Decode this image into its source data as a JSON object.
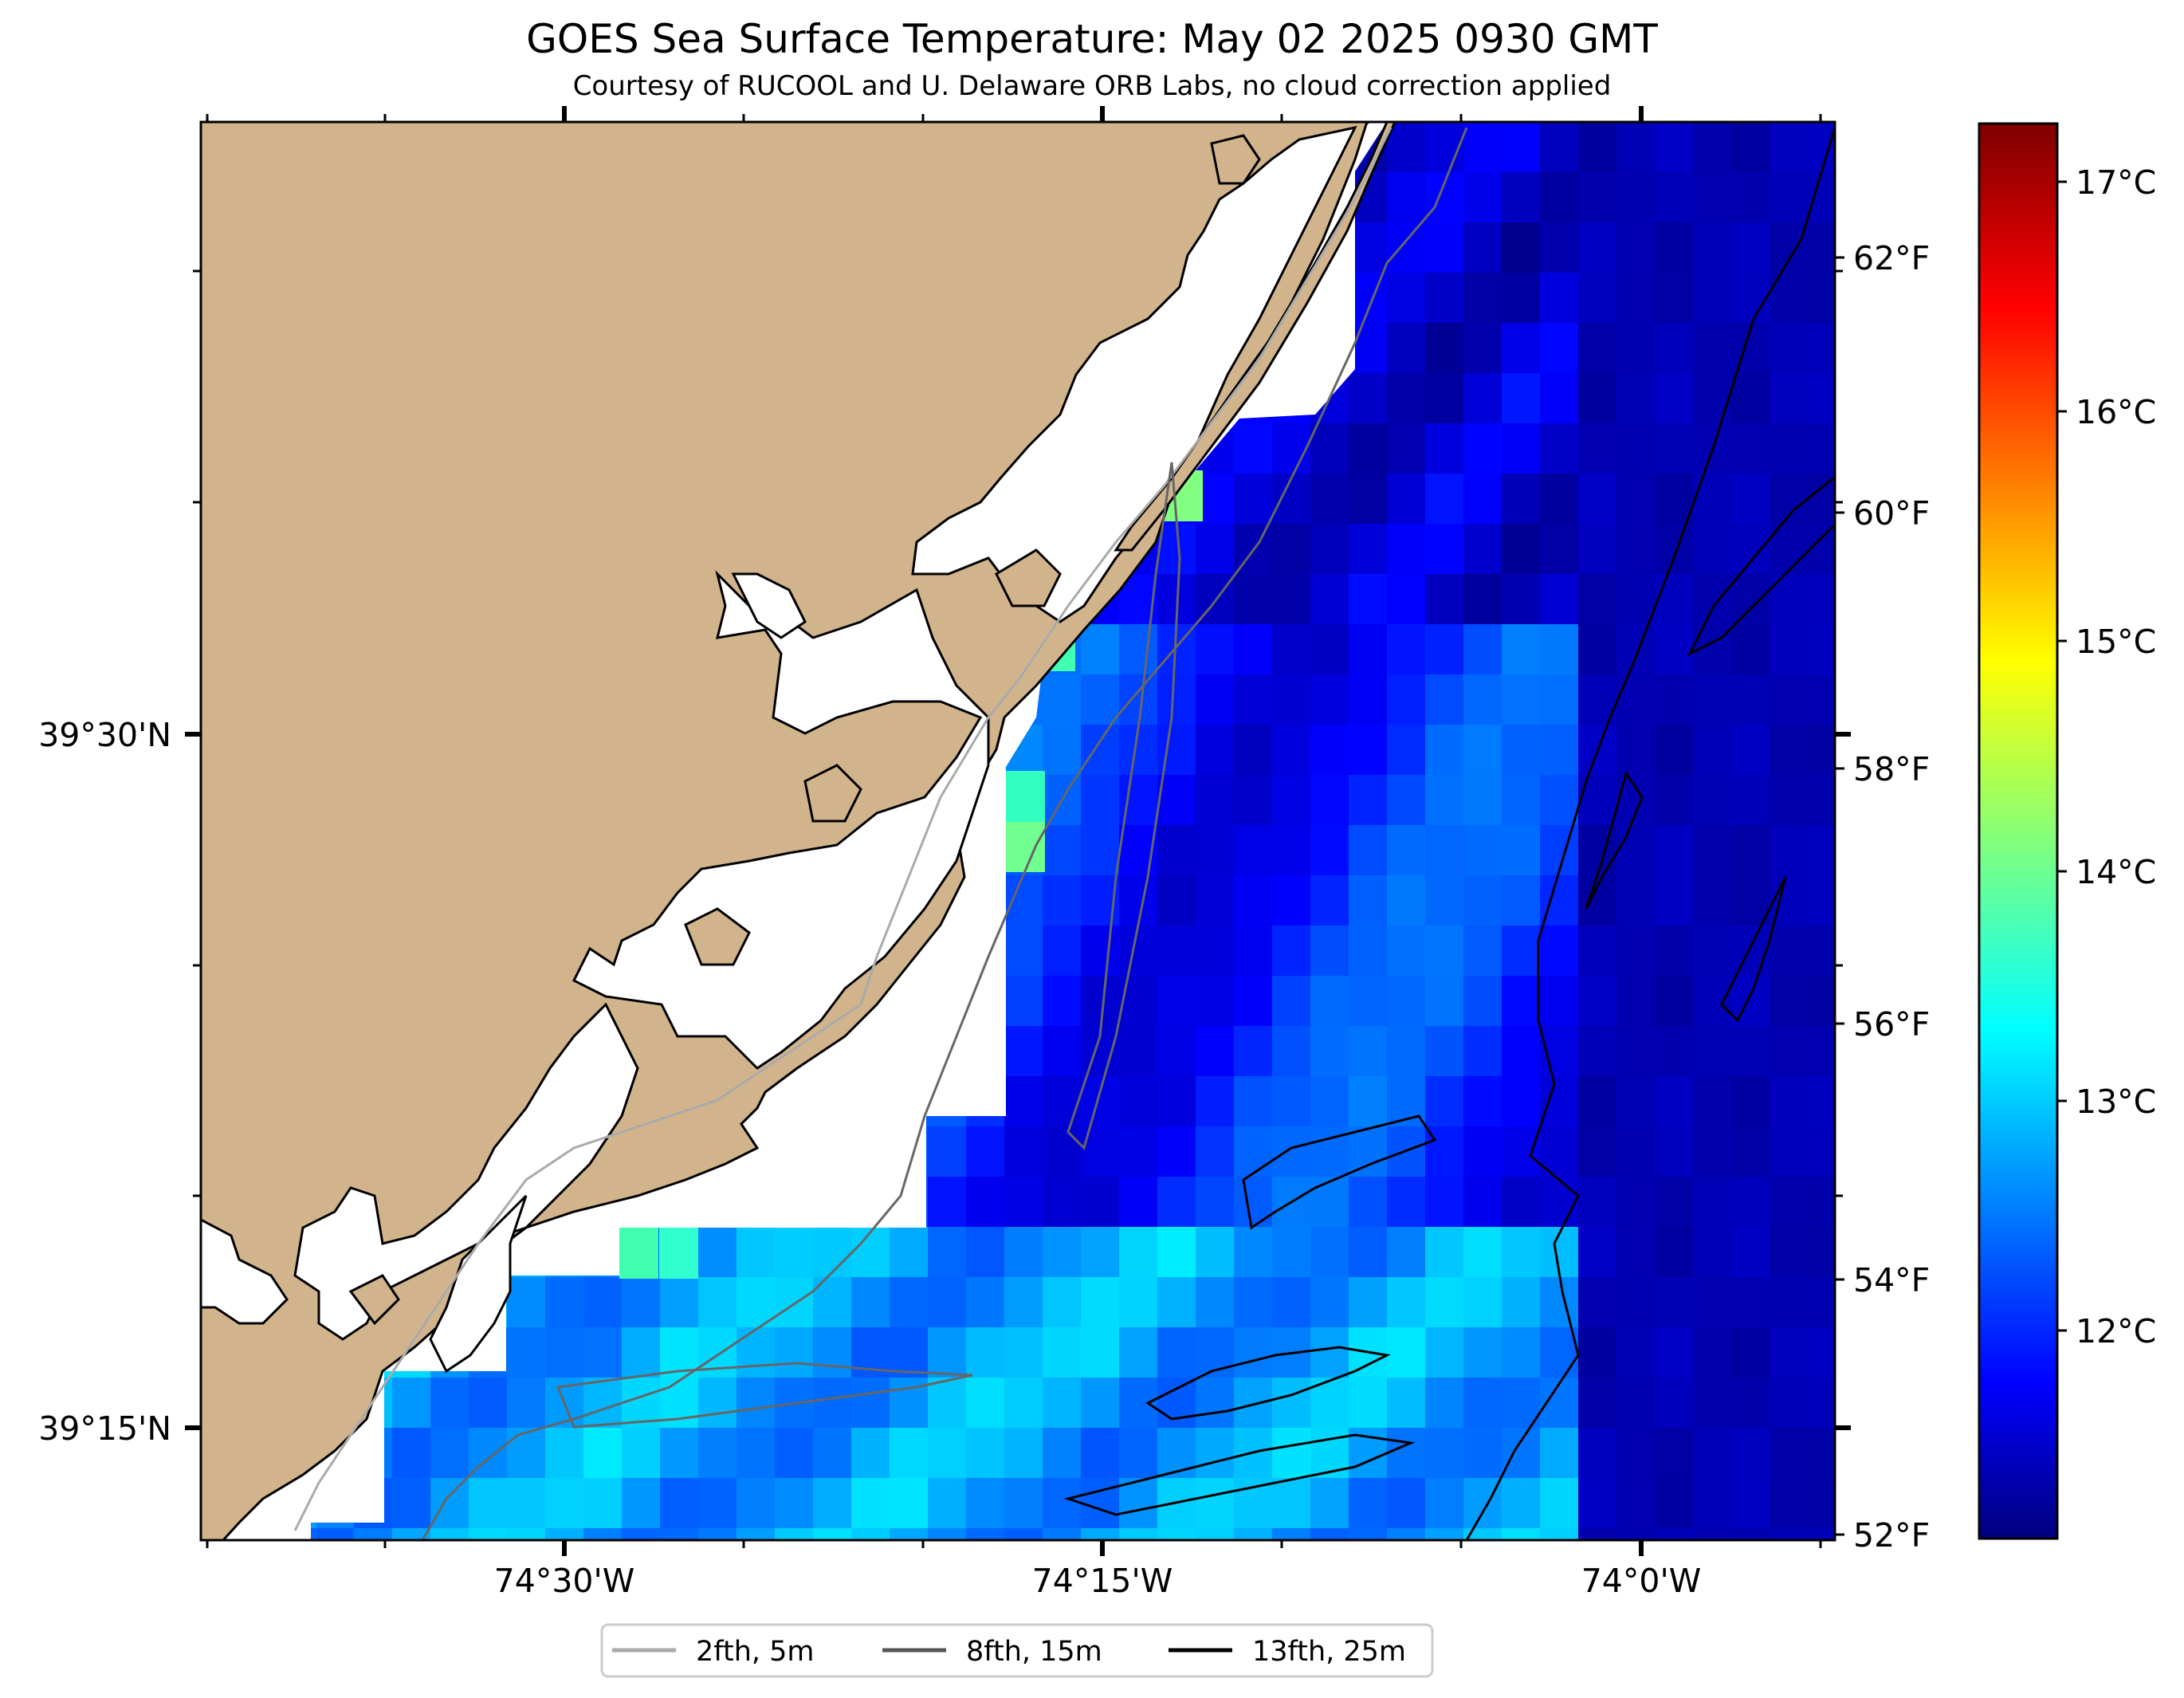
{
  "title": "GOES Sea Surface Temperature: May 02 2025 0930 GMT",
  "subtitle": "Courtesy of RUCOOL and U. Delaware ORB Labs, no cloud correction applied",
  "map": {
    "longitude_labels": [
      "74°30'W",
      "74°15'W",
      "74°0'W"
    ],
    "latitude_labels": [
      "39°30'N",
      "39°15'N"
    ],
    "colors": {
      "land": "#d2b48c",
      "coastline": "#000000",
      "no_data": "#ffffff"
    }
  },
  "colorbar": {
    "celsius_labels": [
      "17°C",
      "16°C",
      "15°C",
      "14°C",
      "13°C",
      "12°C"
    ],
    "fahrenheit_labels": [
      "62°F",
      "60°F",
      "58°F",
      "56°F",
      "54°F",
      "52°F"
    ],
    "colormap": "jet",
    "range_celsius": [
      11.1,
      17.3
    ]
  },
  "legend": {
    "placement": "bottom-center",
    "items": [
      {
        "label": "2fth, 5m",
        "color": "#aaaaaa"
      },
      {
        "label": "8fth, 15m",
        "color": "#555555"
      },
      {
        "label": "13fth, 25m",
        "color": "#000000"
      }
    ]
  }
}
